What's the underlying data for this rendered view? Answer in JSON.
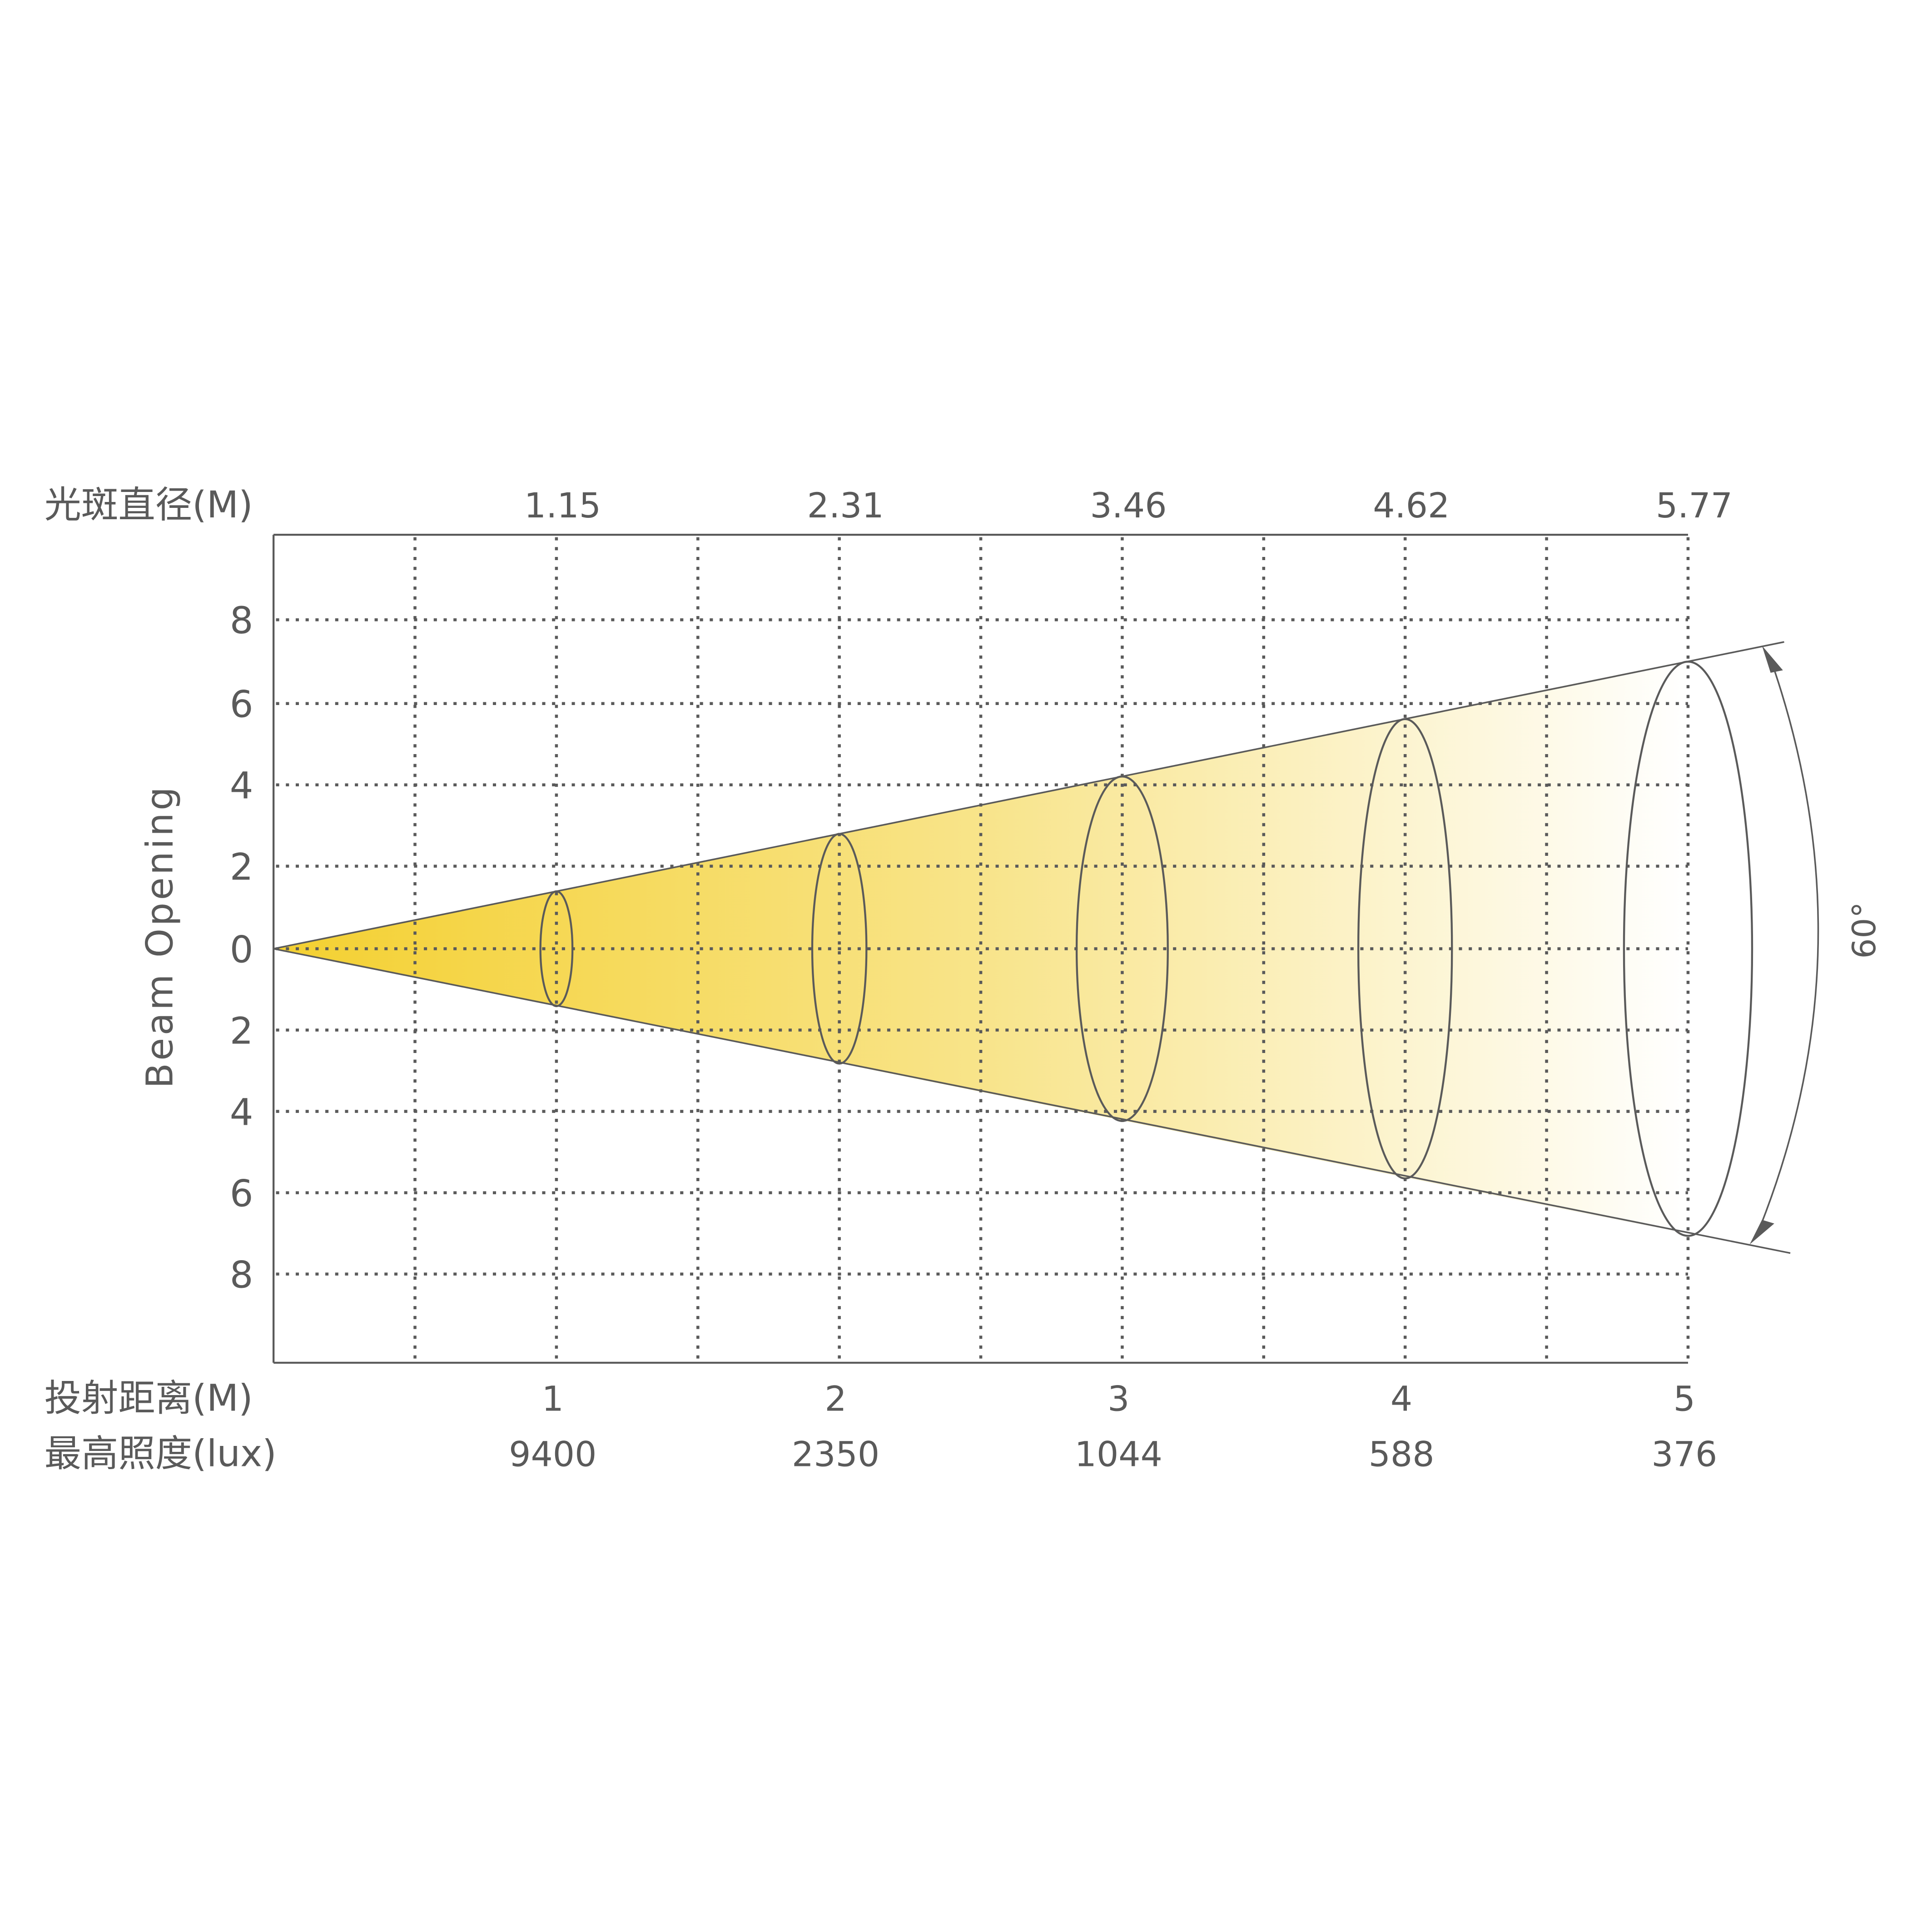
{
  "chart_data": {
    "type": "diagram-beam",
    "beam_angle_label": "60°",
    "ylabel": "Beam Opening",
    "y_ticks": [
      "8",
      "6",
      "4",
      "2",
      "0",
      "2",
      "4",
      "6",
      "8"
    ],
    "top_axis_label": "光斑直径(M)",
    "distance_label": "投射距离(M)",
    "lux_label": "最高照度(lux)",
    "distance_m": [
      1,
      2,
      3,
      4,
      5
    ],
    "distance_ticks": [
      "1",
      "2",
      "3",
      "4",
      "5"
    ],
    "spot_diameter_m": [
      "1.15",
      "2.31",
      "3.46",
      "4.62",
      "5.77"
    ],
    "max_illuminance_lux": [
      "9400",
      "2350",
      "1044",
      "588",
      "376"
    ],
    "grid": true,
    "colors": {
      "beam_start": "#f4d030",
      "beam_end": "#ffffff",
      "line": "#5a5a5a"
    }
  }
}
